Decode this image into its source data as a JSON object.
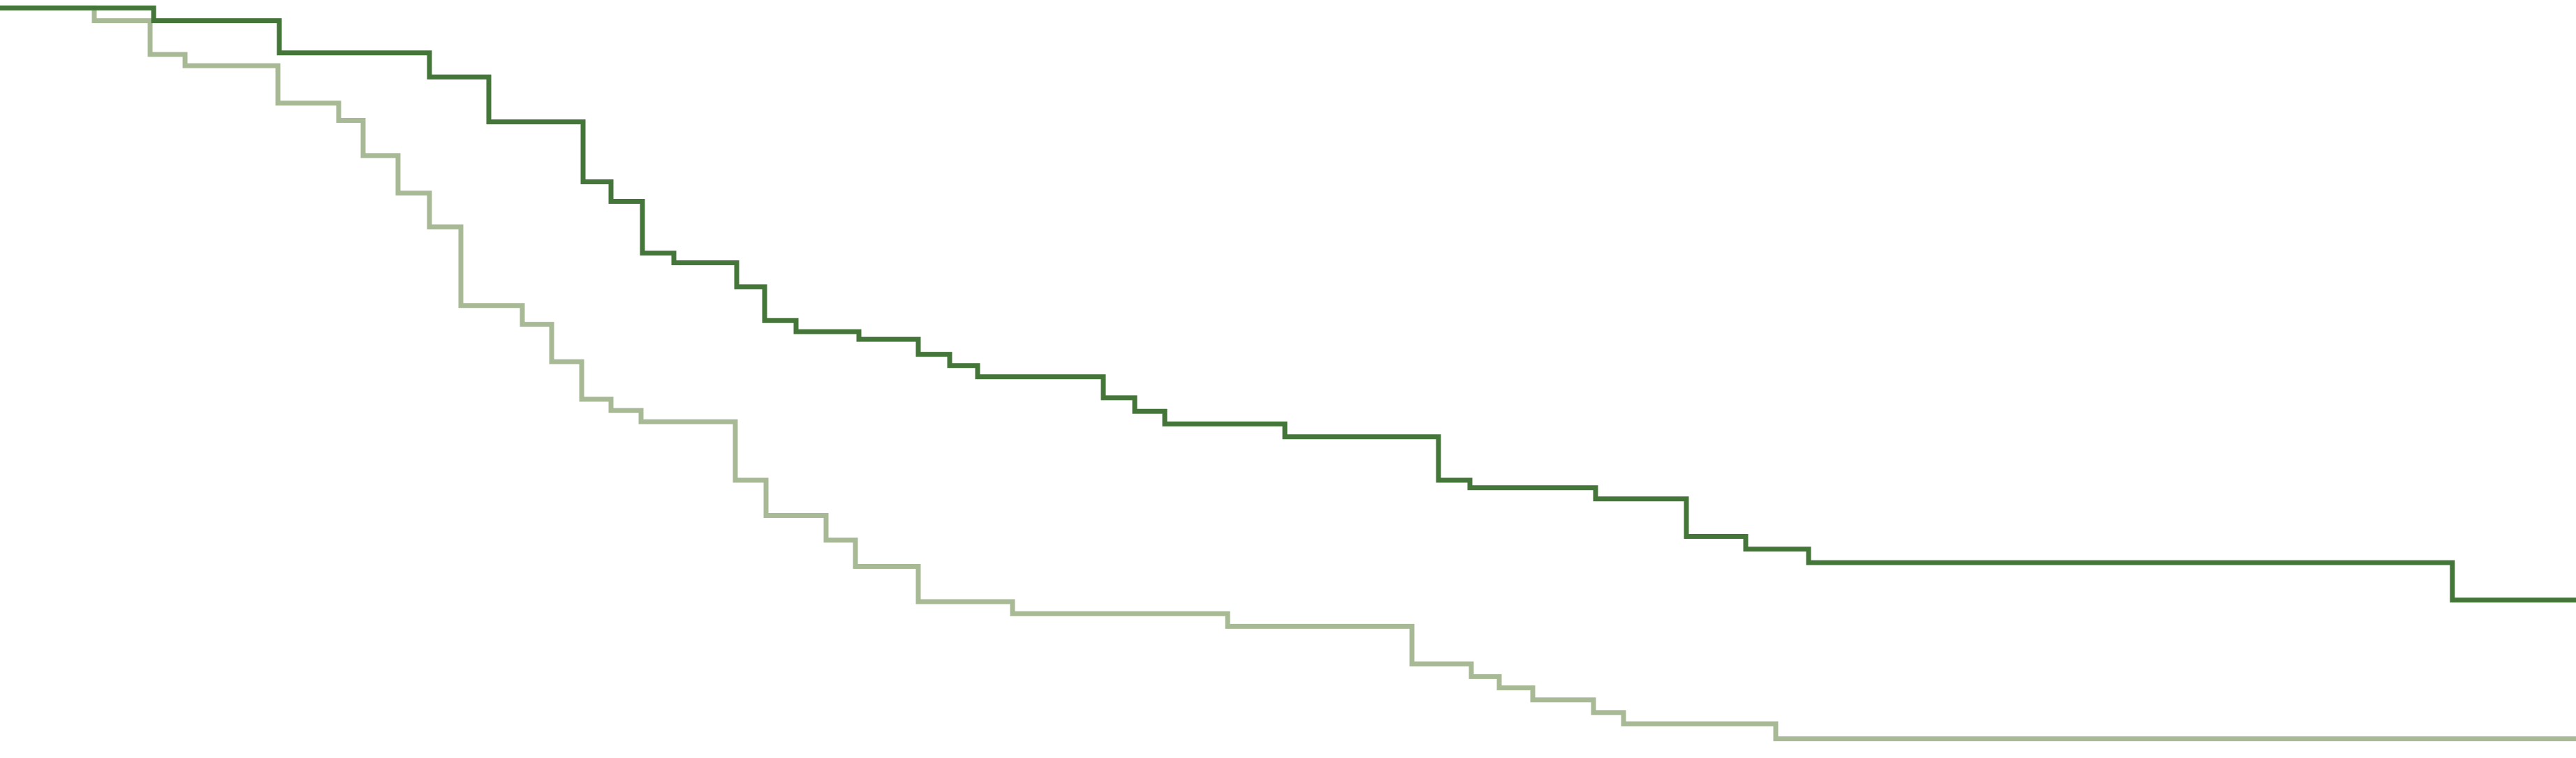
{
  "chart_data": {
    "type": "line",
    "step": true,
    "title": "",
    "xlabel": "",
    "ylabel": "",
    "grid": false,
    "legend": "none",
    "xlim": [
      0,
      3689
    ],
    "ylim": [
      0,
      1.0
    ],
    "series": [
      {
        "color": "#44763a",
        "points": [
          [
            0,
            0.995
          ],
          [
            220,
            0.978
          ],
          [
            400,
            0.935
          ],
          [
            615,
            0.903
          ],
          [
            700,
            0.843
          ],
          [
            835,
            0.763
          ],
          [
            875,
            0.737
          ],
          [
            920,
            0.668
          ],
          [
            965,
            0.655
          ],
          [
            1055,
            0.623
          ],
          [
            1095,
            0.578
          ],
          [
            1140,
            0.563
          ],
          [
            1230,
            0.553
          ],
          [
            1315,
            0.533
          ],
          [
            1360,
            0.518
          ],
          [
            1400,
            0.503
          ],
          [
            1580,
            0.475
          ],
          [
            1625,
            0.457
          ],
          [
            1668,
            0.44
          ],
          [
            1840,
            0.423
          ],
          [
            2060,
            0.365
          ],
          [
            2105,
            0.355
          ],
          [
            2285,
            0.34
          ],
          [
            2415,
            0.29
          ],
          [
            2500,
            0.273
          ],
          [
            2590,
            0.255
          ],
          [
            3512,
            0.205
          ],
          [
            3689,
            0.205
          ]
        ]
      },
      {
        "color": "#a8b996",
        "points": [
          [
            0,
            0.995
          ],
          [
            135,
            0.978
          ],
          [
            215,
            0.933
          ],
          [
            265,
            0.918
          ],
          [
            398,
            0.868
          ],
          [
            485,
            0.845
          ],
          [
            520,
            0.798
          ],
          [
            570,
            0.748
          ],
          [
            615,
            0.703
          ],
          [
            660,
            0.598
          ],
          [
            748,
            0.573
          ],
          [
            790,
            0.523
          ],
          [
            833,
            0.473
          ],
          [
            875,
            0.458
          ],
          [
            918,
            0.443
          ],
          [
            1053,
            0.365
          ],
          [
            1097,
            0.318
          ],
          [
            1183,
            0.285
          ],
          [
            1225,
            0.25
          ],
          [
            1315,
            0.203
          ],
          [
            1450,
            0.187
          ],
          [
            1758,
            0.17
          ],
          [
            2022,
            0.12
          ],
          [
            2107,
            0.103
          ],
          [
            2147,
            0.088
          ],
          [
            2195,
            0.072
          ],
          [
            2282,
            0.055
          ],
          [
            2325,
            0.04
          ],
          [
            2543,
            0.02
          ],
          [
            3689,
            0.02
          ]
        ]
      }
    ]
  }
}
